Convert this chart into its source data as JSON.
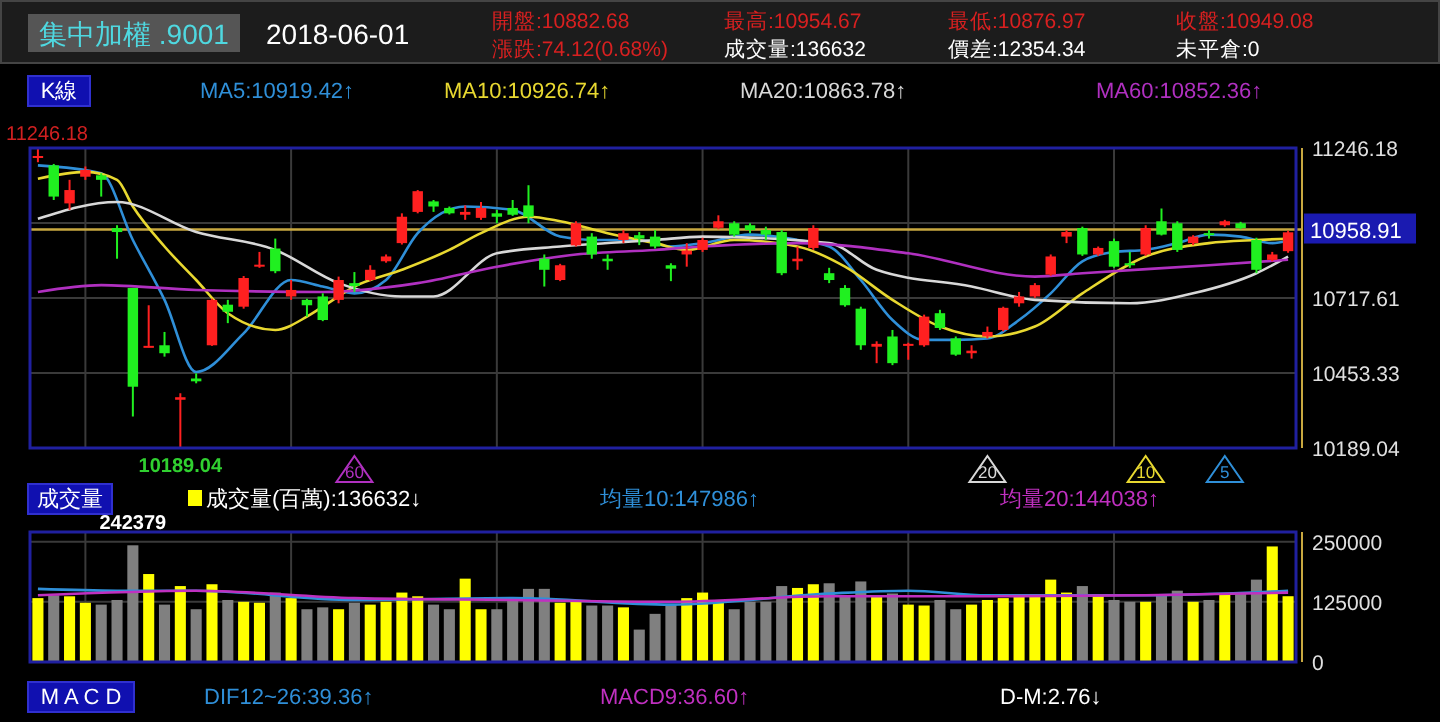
{
  "chart_data": [
    {
      "type": "other",
      "title": "集中加權 .9001",
      "subtitle": "2018-06-01",
      "annotations": [
        "開盤:10882.68",
        "漲跌:74.12(0.68%)",
        "最高:10954.67",
        "成交量:136632",
        "最低:10876.97",
        "價差:12354.34",
        "收盤:10949.08",
        "未平倉:0"
      ]
    },
    {
      "type": "candlestick",
      "title": "K線",
      "categories": [
        null,
        null,
        null,
        null,
        null,
        null,
        null,
        null,
        null,
        null,
        null,
        null,
        null,
        null,
        null,
        null,
        null,
        null,
        null,
        null,
        null,
        null,
        null,
        null,
        null,
        null,
        null,
        null,
        null,
        null,
        null,
        null,
        null,
        null,
        null,
        null,
        null,
        null,
        null,
        null,
        null,
        null,
        null,
        null,
        null,
        null,
        null,
        null,
        null,
        null,
        null,
        null,
        null,
        null,
        null,
        null,
        null,
        null,
        null,
        null,
        null,
        null,
        null,
        null,
        null,
        null,
        null,
        null,
        null,
        null,
        null,
        null,
        null,
        null,
        null,
        null,
        null,
        null,
        null,
        null
      ],
      "ohlc": [
        [
          11213,
          11246.18,
          11196,
          11218
        ],
        [
          11185,
          11190,
          11063,
          11075
        ],
        [
          11051,
          11134,
          11028,
          11098
        ],
        [
          11145,
          11181,
          11134,
          11169
        ],
        [
          11150,
          11157,
          11075,
          11134
        ],
        [
          10964,
          10974,
          10856,
          10950
        ],
        [
          10753,
          10753,
          10300,
          10405
        ],
        [
          10544,
          10692,
          10544,
          10549
        ],
        [
          10551,
          10598,
          10511,
          10523
        ],
        [
          10359,
          10382,
          10189.04,
          10368
        ],
        [
          10434,
          10452,
          10417,
          10424
        ],
        [
          10551,
          10715,
          10549,
          10711
        ],
        [
          10694,
          10711,
          10629,
          10669
        ],
        [
          10687,
          10795,
          10680,
          10788
        ],
        [
          10830,
          10880,
          10824,
          10835
        ],
        [
          10892,
          10927,
          10805,
          10812
        ],
        [
          10723,
          10781,
          10711,
          10746
        ],
        [
          10711,
          10715,
          10652,
          10692
        ],
        [
          10723,
          10734,
          10636,
          10640
        ],
        [
          10711,
          10793,
          10699,
          10781
        ],
        [
          10770,
          10809,
          10739,
          10760
        ],
        [
          10781,
          10833,
          10777,
          10817
        ],
        [
          10847,
          10871,
          10842,
          10864
        ],
        [
          10911,
          11016,
          10906,
          11004
        ],
        [
          11021,
          11098,
          11016,
          11094
        ],
        [
          11058,
          11063,
          11021,
          11040
        ],
        [
          11035,
          11040,
          11012,
          11016
        ],
        [
          11011,
          11044,
          10993,
          11021
        ],
        [
          11000,
          11056,
          10993,
          11035
        ],
        [
          11016,
          11028,
          10981,
          11004
        ],
        [
          11035,
          11063,
          11007,
          11011
        ],
        [
          11044,
          11115,
          10981,
          11004
        ],
        [
          10856,
          10871,
          10758,
          10817
        ],
        [
          10781,
          10838,
          10777,
          10833
        ],
        [
          10903,
          10988,
          10899,
          10981
        ],
        [
          10934,
          10946,
          10856,
          10871
        ],
        [
          10856,
          10871,
          10817,
          10847
        ],
        [
          10922,
          10957,
          10911,
          10946
        ],
        [
          10939,
          10950,
          10904,
          10927
        ],
        [
          10934,
          10957,
          10892,
          10899
        ],
        [
          10833,
          10840,
          10777,
          10821
        ],
        [
          10871,
          10911,
          10828,
          10885
        ],
        [
          10887,
          10930,
          10880,
          10922
        ],
        [
          10965,
          11009,
          10960,
          10988
        ],
        [
          10981,
          10988,
          10934,
          10941
        ],
        [
          10974,
          10981,
          10946,
          10957
        ],
        [
          10957,
          10969,
          10922,
          10941
        ],
        [
          10950,
          10957,
          10798,
          10805
        ],
        [
          10847,
          10899,
          10817,
          10856
        ],
        [
          10894,
          10974,
          10887,
          10964
        ],
        [
          10805,
          10824,
          10770,
          10781
        ],
        [
          10753,
          10763,
          10687,
          10692
        ],
        [
          10680,
          10687,
          10535,
          10551
        ],
        [
          10546,
          10565,
          10488,
          10556
        ],
        [
          10582,
          10605,
          10481,
          10488
        ],
        [
          10549,
          10560,
          10500,
          10556
        ],
        [
          10551,
          10659,
          10546,
          10652
        ],
        [
          10664,
          10676,
          10605,
          10612
        ],
        [
          10575,
          10582,
          10514,
          10518
        ],
        [
          10523,
          10551,
          10504,
          10532
        ],
        [
          10582,
          10617,
          10575,
          10598
        ],
        [
          10605,
          10687,
          10600,
          10683
        ],
        [
          10699,
          10739,
          10687,
          10723
        ],
        [
          10723,
          10770,
          10718,
          10763
        ],
        [
          10800,
          10871,
          10796,
          10864
        ],
        [
          10934,
          10957,
          10911,
          10950
        ],
        [
          10964,
          10969,
          10866,
          10871
        ],
        [
          10871,
          10899,
          10866,
          10894
        ],
        [
          10918,
          10927,
          10824,
          10828
        ],
        [
          10840,
          10880,
          10824,
          10833
        ],
        [
          10871,
          10974,
          10866,
          10964
        ],
        [
          10988,
          11033,
          10938,
          10941
        ],
        [
          10981,
          10988,
          10880,
          10887
        ],
        [
          10911,
          10939,
          10904,
          10934
        ],
        [
          10946,
          10957,
          10927,
          10939
        ],
        [
          10974,
          10993,
          10969,
          10988
        ],
        [
          10981,
          10986,
          10960,
          10964
        ],
        [
          10922,
          10930,
          10805,
          10817
        ],
        [
          10852,
          10880,
          10847,
          10871
        ],
        [
          10882.68,
          10954.67,
          10876.97,
          10949.08
        ]
      ],
      "series": [
        {
          "type": "line",
          "name": "MA5:10919.42↑",
          "color": "#2f8fd8",
          "values": [
            11185,
            null,
            null,
            null,
            11157,
            null,
            10922,
            null,
            10711,
            null,
            10457,
            null,
            null,
            10593,
            null,
            null,
            10781,
            null,
            10758,
            null,
            10734,
            null,
            10781,
            null,
            10946,
            null,
            null,
            11040,
            null,
            null,
            11028,
            null,
            null,
            10934,
            null,
            10922,
            null,
            null,
            10922,
            null,
            10899,
            null,
            10911,
            null,
            null,
            10941,
            null,
            null,
            10922,
            null,
            10899,
            null,
            10781,
            null,
            10640,
            null,
            10570,
            null,
            10570,
            null,
            10575,
            null,
            10640,
            null,
            10734,
            null,
            10847,
            null,
            10880,
            null,
            10887,
            null,
            10911,
            null,
            10941,
            null,
            10934,
            null,
            10911,
            10919.42
          ]
        },
        {
          "type": "line",
          "name": "MA10:10926.74↑",
          "color": "#e8d830",
          "values": [
            11138,
            null,
            null,
            11162,
            null,
            11134,
            11040,
            null,
            10899,
            null,
            10781,
            null,
            10664,
            null,
            null,
            10605,
            null,
            10652,
            10687,
            null,
            10758,
            null,
            null,
            10817,
            null,
            null,
            10887,
            null,
            10946,
            null,
            null,
            11004,
            null,
            10988,
            null,
            null,
            10946,
            null,
            null,
            10911,
            null,
            10887,
            null,
            null,
            10922,
            null,
            null,
            null,
            10899,
            null,
            null,
            10828,
            null,
            null,
            10711,
            null,
            null,
            10617,
            null,
            null,
            10582,
            null,
            null,
            10617,
            null,
            null,
            10734,
            null,
            null,
            null,
            10864,
            null,
            null,
            null,
            10911,
            null,
            null,
            10922,
            null,
            10926.74
          ]
        },
        {
          "type": "line",
          "name": "MA20:10863.78↑",
          "color": "#d8d8d8",
          "values": [
            10997,
            null,
            null,
            null,
            null,
            11056,
            null,
            null,
            null,
            null,
            10950,
            null,
            null,
            null,
            null,
            10887,
            null,
            null,
            null,
            10770,
            null,
            null,
            null,
            10723,
            null,
            10723,
            null,
            null,
            null,
            10875,
            null,
            null,
            null,
            10899,
            null,
            null,
            null,
            null,
            null,
            10922,
            null,
            null,
            10934,
            null,
            null,
            null,
            null,
            null,
            null,
            null,
            10911,
            null,
            null,
            10817,
            null,
            null,
            null,
            null,
            null,
            10758,
            null,
            null,
            null,
            10711,
            null,
            null,
            null,
            null,
            null,
            10699,
            null,
            null,
            null,
            10734,
            null,
            null,
            null,
            10805,
            null,
            10863.78
          ]
        },
        {
          "type": "line",
          "name": "MA60:10852.36↑",
          "color": "#b030c0",
          "values": [
            10739,
            null,
            null,
            null,
            10763,
            null,
            null,
            null,
            null,
            null,
            10746,
            null,
            null,
            null,
            null,
            null,
            null,
            null,
            10739,
            null,
            null,
            null,
            null,
            null,
            10770,
            null,
            null,
            null,
            null,
            10828,
            null,
            null,
            null,
            null,
            10871,
            null,
            null,
            null,
            null,
            10887,
            null,
            null,
            10899,
            null,
            null,
            null,
            null,
            null,
            10911,
            null,
            null,
            null,
            null,
            null,
            null,
            10875,
            null,
            null,
            null,
            null,
            null,
            null,
            null,
            10793,
            null,
            null,
            10805,
            null,
            null,
            null,
            null,
            null,
            null,
            null,
            10833,
            null,
            null,
            null,
            null,
            10852.36
          ]
        }
      ],
      "ylim": [
        10189.04,
        11246.18
      ],
      "yticks": [
        10189.04,
        10453.33,
        10717.61,
        {
          "value": 10981.9,
          "label": null
        },
        11246.18
      ],
      "grid": true,
      "legend": "top",
      "ref_lines": [
        {
          "axis": "y",
          "value": 10958.91,
          "label": "10958.91",
          "color": "#c8a840"
        }
      ],
      "annotations": [
        {
          "text": "11246.18",
          "y": 11246.18
        },
        {
          "text": "10189.04",
          "y": 10189.04
        },
        "5",
        "10",
        "20",
        "60"
      ]
    },
    {
      "type": "bar",
      "title": "成交量",
      "categories": [
        null,
        null,
        null,
        null,
        null,
        null,
        null,
        null,
        null,
        null,
        null,
        null,
        null,
        null,
        null,
        null,
        null,
        null,
        null,
        null,
        null,
        null,
        null,
        null,
        null,
        null,
        null,
        null,
        null,
        null,
        null,
        null,
        null,
        null,
        null,
        null,
        null,
        null,
        null,
        null,
        null,
        null,
        null,
        null,
        null,
        null,
        null,
        null,
        null,
        null,
        null,
        null,
        null,
        null,
        null,
        null,
        null,
        null,
        null,
        null,
        null,
        null,
        null,
        null,
        null,
        null,
        null,
        null,
        null,
        null,
        null,
        null,
        null,
        null,
        null,
        null,
        null,
        null,
        null,
        null
      ],
      "series": [
        {
          "type": "bar",
          "name": "成交量(百萬):136632↓",
          "color": "#ffff00",
          "values": [
            132700,
            138500,
            136500,
            123000,
            119200,
            128800,
            242379,
            182700,
            119200,
            157700,
            109600,
            161500,
            128800,
            125000,
            123000,
            144200,
            132700,
            109600,
            113500,
            109600,
            123000,
            119200,
            125000,
            144200,
            136500,
            119200,
            109600,
            173100,
            109600,
            109600,
            132700,
            151900,
            151900,
            123000,
            128800,
            117300,
            117300,
            113500,
            67300,
            100000,
            119200,
            132700,
            144200,
            128800,
            109600,
            125000,
            125000,
            157700,
            153800,
            161500,
            163500,
            138500,
            167300,
            138500,
            142300,
            119200,
            117300,
            128800,
            109600,
            119200,
            128800,
            132700,
            136500,
            138500,
            171100,
            144200,
            157700,
            138500,
            128800,
            125000,
            125000,
            138500,
            148100,
            125000,
            128800,
            142300,
            142300,
            171100,
            240000,
            136632
          ],
          "colors": [
            "#ffff00",
            "#808080",
            "#ffff00",
            "#ffff00",
            "#808080",
            "#808080",
            "#808080",
            "#ffff00",
            "#808080",
            "#ffff00",
            "#808080",
            "#ffff00",
            "#808080",
            "#ffff00",
            "#ffff00",
            "#808080",
            "#ffff00",
            "#808080",
            "#808080",
            "#ffff00",
            "#808080",
            "#ffff00",
            "#ffff00",
            "#ffff00",
            "#ffff00",
            "#808080",
            "#808080",
            "#ffff00",
            "#ffff00",
            "#808080",
            "#808080",
            "#808080",
            "#808080",
            "#ffff00",
            "#ffff00",
            "#808080",
            "#808080",
            "#ffff00",
            "#808080",
            "#808080",
            "#808080",
            "#ffff00",
            "#ffff00",
            "#ffff00",
            "#808080",
            "#808080",
            "#808080",
            "#808080",
            "#ffff00",
            "#ffff00",
            "#808080",
            "#808080",
            "#808080",
            "#ffff00",
            "#808080",
            "#ffff00",
            "#ffff00",
            "#808080",
            "#808080",
            "#ffff00",
            "#ffff00",
            "#ffff00",
            "#ffff00",
            "#ffff00",
            "#ffff00",
            "#ffff00",
            "#808080",
            "#ffff00",
            "#808080",
            "#808080",
            "#ffff00",
            "#808080",
            "#808080",
            "#ffff00",
            "#808080",
            "#ffff00",
            "#808080",
            "#808080",
            "#ffff00",
            "#ffff00"
          ],
          "value_labels": [
            null,
            null,
            null,
            null,
            null,
            null,
            "242379",
            null,
            null,
            null,
            null,
            null,
            null,
            null,
            null,
            null,
            null,
            null,
            null,
            null,
            null,
            null,
            null,
            null,
            null,
            null,
            null,
            null,
            null,
            null,
            null,
            null,
            null,
            null,
            null,
            null,
            null,
            null,
            null,
            null,
            null,
            null,
            null,
            null,
            null,
            null,
            null,
            null,
            null,
            null,
            null,
            null,
            null,
            null,
            null,
            null,
            null,
            null,
            null,
            null,
            null,
            null,
            null,
            null,
            null,
            null,
            null,
            null,
            null,
            null,
            null,
            null,
            null,
            null,
            null,
            null,
            null,
            null,
            null,
            null
          ]
        },
        {
          "type": "line",
          "name": "均量10:147986↑",
          "color": "#2f8fd8",
          "values": [
            151900,
            null,
            null,
            null,
            null,
            148100,
            null,
            null,
            null,
            null,
            148100,
            null,
            null,
            null,
            null,
            null,
            null,
            null,
            null,
            null,
            128800,
            null,
            null,
            null,
            null,
            null,
            null,
            null,
            null,
            null,
            132700,
            null,
            null,
            null,
            null,
            null,
            null,
            null,
            null,
            null,
            119200,
            null,
            null,
            null,
            null,
            null,
            null,
            null,
            null,
            null,
            142300,
            null,
            null,
            null,
            null,
            148100,
            null,
            null,
            null,
            null,
            138500,
            null,
            null,
            null,
            null,
            null,
            null,
            null,
            null,
            null,
            138500,
            null,
            null,
            null,
            null,
            null,
            null,
            null,
            null,
            147986
          ]
        },
        {
          "type": "line",
          "name": "均量20:144038↑",
          "color": "#c030c0",
          "values": [
            138500,
            null,
            null,
            null,
            null,
            null,
            null,
            null,
            null,
            null,
            148100,
            null,
            null,
            null,
            null,
            null,
            null,
            null,
            null,
            null,
            132700,
            null,
            null,
            null,
            null,
            null,
            null,
            null,
            null,
            null,
            128800,
            null,
            null,
            null,
            null,
            null,
            null,
            null,
            null,
            null,
            125000,
            null,
            null,
            null,
            null,
            null,
            null,
            null,
            null,
            null,
            136500,
            null,
            null,
            null,
            null,
            null,
            null,
            null,
            null,
            null,
            136500,
            null,
            null,
            null,
            null,
            null,
            null,
            null,
            null,
            null,
            138500,
            null,
            null,
            null,
            null,
            null,
            null,
            null,
            null,
            144038
          ]
        }
      ],
      "ylim": [
        0,
        270000
      ],
      "yticks": [
        0,
        125000,
        250000
      ],
      "grid": true,
      "legend": "top"
    },
    {
      "type": "other",
      "title": "M A C D",
      "annotations": [
        "DIF12~26:39.36↑",
        "MACD9:36.60↑",
        "D-M:2.76↓"
      ]
    }
  ]
}
